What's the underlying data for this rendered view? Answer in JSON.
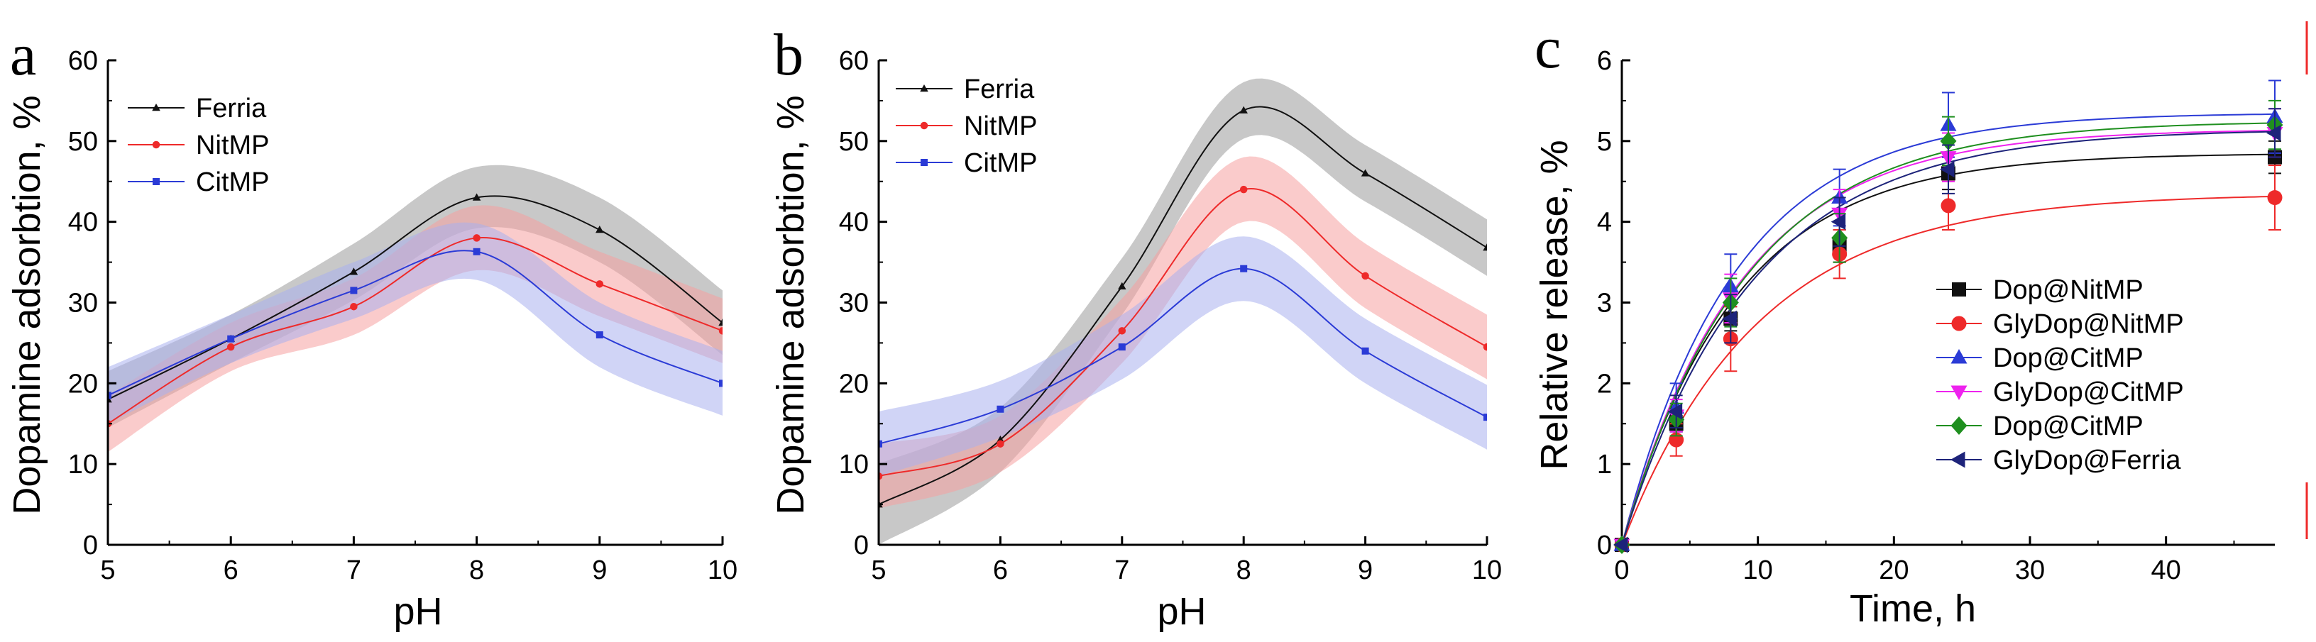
{
  "figure": {
    "accent_colors": {
      "black": "#111111",
      "red": "#ee2a2a",
      "blue": "#2b3bd6",
      "magenta": "#ee22ee",
      "green": "#1f8f1f",
      "navy": "#1d237a",
      "gray_band": "#9a9a9a",
      "red_band": "#f5a0a0",
      "blue_band": "#a9b0ee"
    }
  },
  "chart_data": [
    {
      "id": "a",
      "panel_label": "a",
      "type": "line",
      "xlabel": "pH",
      "ylabel": "Dopamine adsorbtion, %",
      "xlim": [
        5,
        10
      ],
      "ylim": [
        0,
        60
      ],
      "xticks": [
        5,
        6,
        7,
        8,
        9,
        10
      ],
      "yticks": [
        0,
        10,
        20,
        30,
        40,
        50,
        60
      ],
      "legend_position": "top-left",
      "x": [
        5,
        6,
        7,
        8,
        9,
        10
      ],
      "series": [
        {
          "name": "Ferria",
          "color": "#111111",
          "marker": "triangle",
          "band_color": "#9a9a9a",
          "values": [
            18,
            25.5,
            33.8,
            43,
            39,
            27.5
          ],
          "band": [
            3.5,
            3,
            3.5,
            3.8,
            4,
            4
          ]
        },
        {
          "name": "NitMP",
          "color": "#ee2a2a",
          "marker": "circle",
          "band_color": "#f5a0a0",
          "values": [
            15,
            24.5,
            29.5,
            38,
            32.3,
            26.5
          ],
          "band": [
            3.5,
            3,
            3.5,
            4,
            4,
            4
          ]
        },
        {
          "name": "CitMP",
          "color": "#2b3bd6",
          "marker": "square",
          "band_color": "#a9b0ee",
          "values": [
            18.5,
            25.5,
            31.5,
            36.3,
            26,
            20
          ],
          "band": [
            3.5,
            3,
            3.5,
            3.5,
            4,
            4
          ]
        }
      ]
    },
    {
      "id": "b",
      "panel_label": "b",
      "type": "line",
      "xlabel": "pH",
      "ylabel": "Dopamine adsorbtion, %",
      "xlim": [
        5,
        10
      ],
      "ylim": [
        0,
        60
      ],
      "xticks": [
        5,
        6,
        7,
        8,
        9,
        10
      ],
      "xtick_labels": [
        "5",
        "6",
        "7",
        "8",
        "9",
        "10"
      ],
      "yticks": [
        0,
        10,
        20,
        30,
        40,
        50,
        60
      ],
      "legend_position": "top-left",
      "x": [
        5,
        6,
        7,
        8,
        9,
        10
      ],
      "series": [
        {
          "name": "Ferria",
          "color": "#111111",
          "marker": "triangle",
          "band_color": "#9a9a9a",
          "values": [
            5,
            13,
            32,
            53.8,
            46,
            36.8
          ],
          "band": [
            5,
            4,
            3.5,
            3.5,
            3.5,
            3.5
          ]
        },
        {
          "name": "NitMP",
          "color": "#ee2a2a",
          "marker": "circle",
          "band_color": "#f5a0a0",
          "values": [
            8.5,
            12.5,
            26.5,
            44,
            33.3,
            24.5
          ],
          "band": [
            4,
            3.5,
            4,
            4,
            4,
            4
          ]
        },
        {
          "name": "CitMP",
          "color": "#2b3bd6",
          "marker": "square",
          "band_color": "#a9b0ee",
          "values": [
            12.5,
            16.8,
            24.5,
            34.2,
            24,
            15.8
          ],
          "band": [
            4,
            3.5,
            4,
            4,
            4,
            4
          ]
        }
      ]
    },
    {
      "id": "c",
      "panel_label": "c",
      "type": "scatter",
      "xlabel": "Time, h",
      "ylabel": "Relative release, %",
      "xlim": [
        0,
        48
      ],
      "ylim": [
        0,
        6
      ],
      "xticks": [
        0,
        10,
        20,
        30,
        40
      ],
      "yticks": [
        0,
        1,
        2,
        3,
        4,
        5,
        6
      ],
      "legend_position": "center-right",
      "x": [
        0,
        4,
        8,
        16,
        24,
        48
      ],
      "series": [
        {
          "name": "Dop@NitMP",
          "color": "#111111",
          "marker": "square",
          "values": [
            0,
            1.5,
            2.8,
            3.7,
            4.6,
            4.8
          ],
          "errors": [
            0,
            0.1,
            0.15,
            0.2,
            0.2,
            0.2
          ],
          "fit_max": 4.85,
          "fit_k": 0.12
        },
        {
          "name": "GlyDop@NitMP",
          "color": "#ee2a2a",
          "marker": "circle",
          "values": [
            0,
            1.3,
            2.55,
            3.6,
            4.2,
            4.3
          ],
          "errors": [
            0,
            0.2,
            0.4,
            0.3,
            0.3,
            0.4
          ],
          "fit_max": 4.35,
          "fit_k": 0.1
        },
        {
          "name": "Dop@CitMP",
          "color": "#2b3bd6",
          "marker": "triangle",
          "values": [
            0,
            1.7,
            3.2,
            4.3,
            5.2,
            5.3
          ],
          "errors": [
            0,
            0.3,
            0.4,
            0.35,
            0.4,
            0.45
          ],
          "fit_max": 5.35,
          "fit_k": 0.12
        },
        {
          "name": "GlyDop@CitMP",
          "color": "#ee22ee",
          "marker": "triangle-down",
          "values": [
            0,
            1.6,
            3.05,
            4.1,
            4.8,
            5.1
          ],
          "errors": [
            0,
            0.2,
            0.3,
            0.3,
            0.3,
            0.3
          ],
          "fit_max": 5.15,
          "fit_k": 0.115
        },
        {
          "name": "Dop@CitMP",
          "color": "#1f8f1f",
          "marker": "diamond",
          "values": [
            0,
            1.55,
            3.0,
            3.8,
            5.0,
            5.2
          ],
          "errors": [
            0,
            0.2,
            0.3,
            0.3,
            0.3,
            0.3
          ],
          "fit_max": 5.25,
          "fit_k": 0.11
        },
        {
          "name": "GlyDop@Ferria",
          "color": "#1d237a",
          "marker": "triangle-left",
          "values": [
            0,
            1.65,
            2.8,
            4.0,
            4.65,
            5.1
          ],
          "errors": [
            0,
            0.2,
            0.3,
            0.3,
            0.3,
            0.3
          ],
          "fit_max": 5.15,
          "fit_k": 0.105
        }
      ]
    }
  ]
}
